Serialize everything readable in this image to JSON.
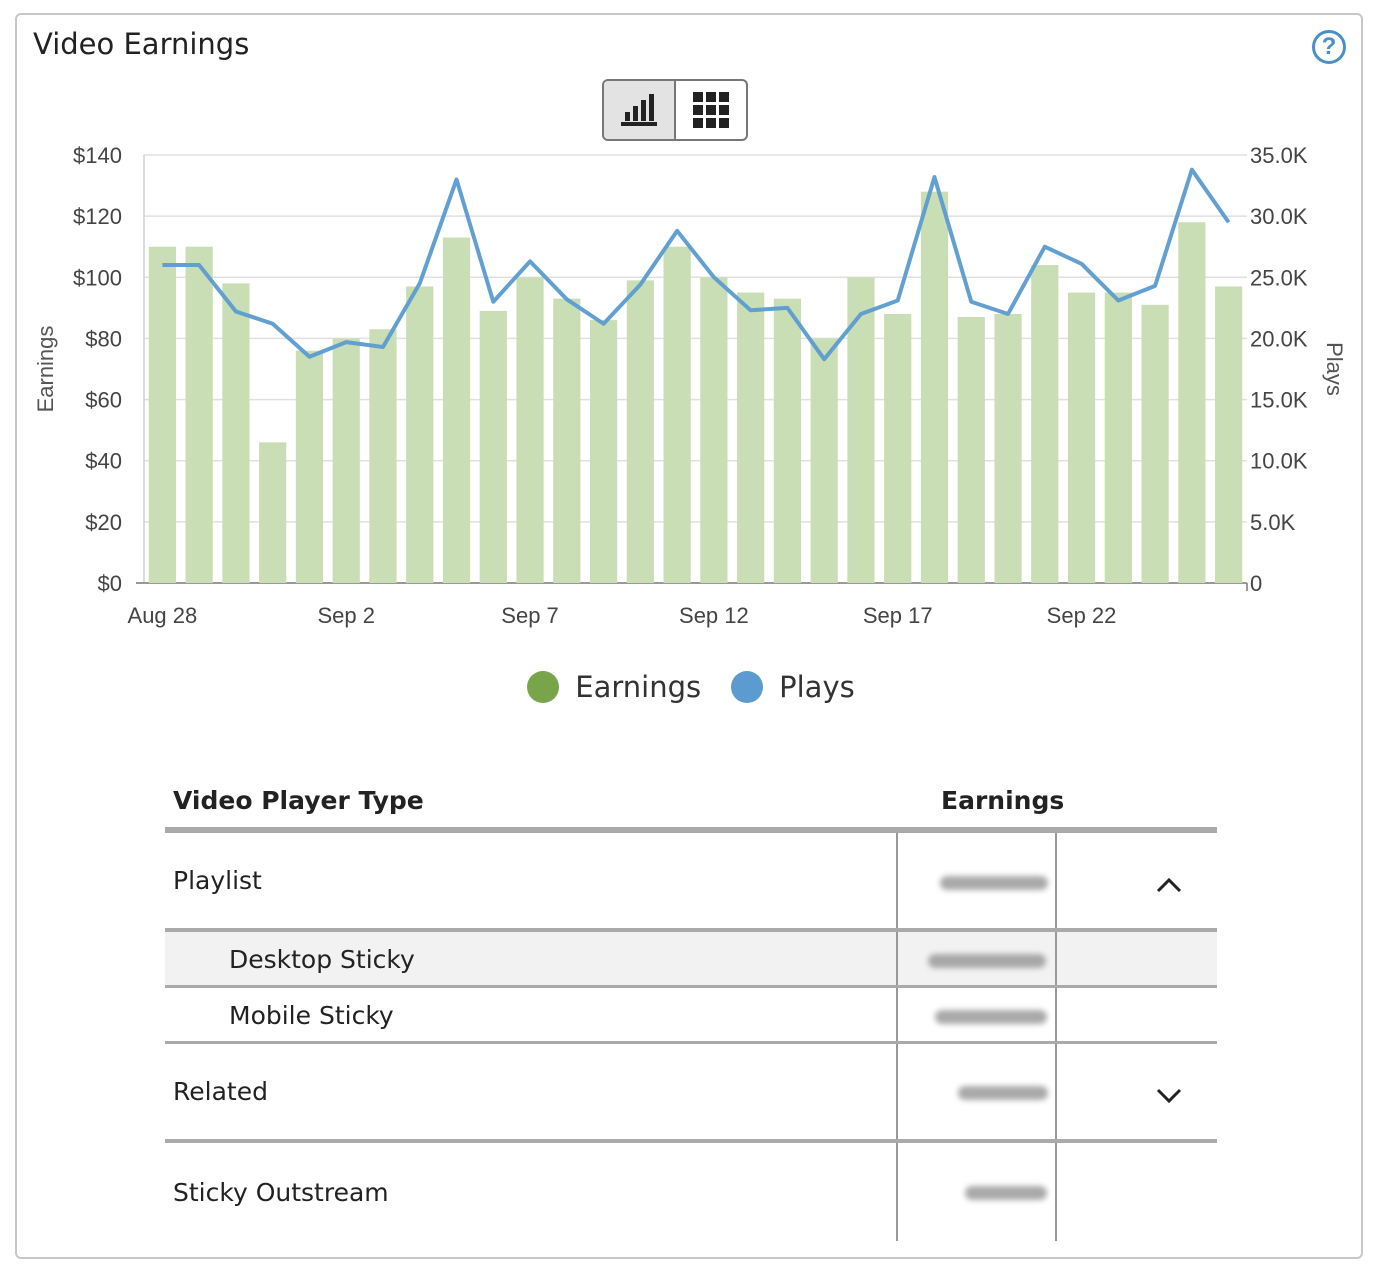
{
  "panel": {
    "title": "Video Earnings",
    "help_icon": "question-circle-icon"
  },
  "view_toggle": {
    "options": [
      {
        "name": "bar-chart-icon",
        "active": true
      },
      {
        "name": "grid-icon",
        "active": false
      }
    ]
  },
  "legend": [
    {
      "label": "Earnings",
      "color": "#78a54a"
    },
    {
      "label": "Plays",
      "color": "#5b9bd0"
    }
  ],
  "chart_data": {
    "type": "bar",
    "title": "",
    "ylabel": "Earnings",
    "y2label": "Plays",
    "ylim": [
      0,
      140
    ],
    "y2lim": [
      0,
      35000
    ],
    "y_ticks": [
      "$0",
      "$20",
      "$40",
      "$60",
      "$80",
      "$100",
      "$120",
      "$140"
    ],
    "y2_ticks": [
      "0",
      "5.0K",
      "10.0K",
      "15.0K",
      "20.0K",
      "25.0K",
      "30.0K",
      "35.0K"
    ],
    "x_ticks": [
      "Aug 28",
      "Sep 2",
      "Sep 7",
      "Sep 12",
      "Sep 17",
      "Sep 22"
    ],
    "categories": [
      "Aug 28",
      "Aug 29",
      "Aug 30",
      "Aug 31",
      "Sep 1",
      "Sep 2",
      "Sep 3",
      "Sep 4",
      "Sep 5",
      "Sep 6",
      "Sep 7",
      "Sep 8",
      "Sep 9",
      "Sep 10",
      "Sep 11",
      "Sep 12",
      "Sep 13",
      "Sep 14",
      "Sep 15",
      "Sep 16",
      "Sep 17",
      "Sep 18",
      "Sep 19",
      "Sep 20",
      "Sep 21",
      "Sep 22",
      "Sep 23",
      "Sep 24",
      "Sep 25",
      "Sep 26"
    ],
    "series": [
      {
        "name": "Earnings",
        "type": "bar",
        "color": "#c9deb4",
        "values": [
          110,
          110,
          98,
          46,
          76,
          80,
          83,
          97,
          113,
          89,
          100,
          93,
          86,
          99,
          110,
          100,
          95,
          93,
          80,
          100,
          88,
          128,
          87,
          88,
          104,
          95,
          95,
          91,
          118,
          97
        ]
      },
      {
        "name": "Plays",
        "type": "line",
        "color": "#5b9bd0",
        "values": [
          26000,
          26000,
          22200,
          21200,
          18500,
          19700,
          19300,
          24500,
          33000,
          23000,
          26300,
          23200,
          21200,
          24400,
          28800,
          25000,
          22300,
          22500,
          18300,
          22000,
          23100,
          33200,
          23000,
          22000,
          27500,
          26100,
          23100,
          24300,
          33800,
          29500
        ]
      }
    ],
    "grid": true,
    "legend_position": "bottom"
  },
  "table": {
    "headers": {
      "type": "Video Player Type",
      "earnings": "Earnings"
    },
    "rows": [
      {
        "label": "Playlist",
        "chevron": "chevron-up-icon",
        "sub": false
      },
      {
        "label": "Desktop Sticky",
        "sub": true,
        "highlight": true
      },
      {
        "label": "Mobile Sticky",
        "sub": true
      },
      {
        "label": "Related",
        "chevron": "chevron-down-icon",
        "sub": false
      },
      {
        "label": "Sticky Outstream",
        "sub": false
      }
    ]
  }
}
